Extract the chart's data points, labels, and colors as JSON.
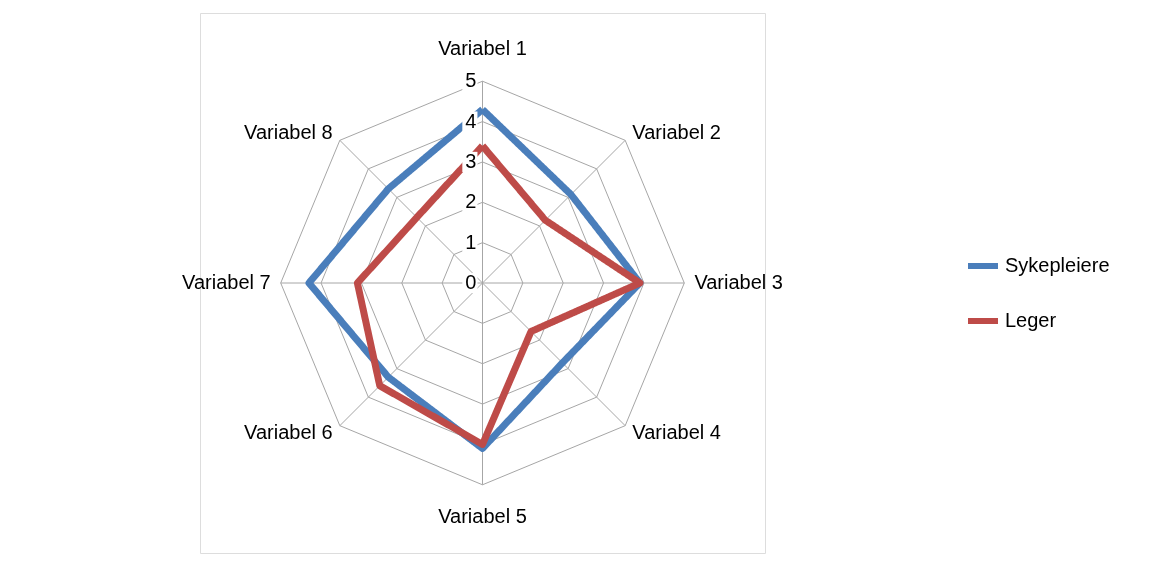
{
  "chart_data": {
    "type": "radar",
    "categories": [
      "Variabel 1",
      "Variabel 2",
      "Variabel 3",
      "Variabel 4",
      "Variabel 5",
      "Variabel 6",
      "Variabel 7",
      "Variabel 8"
    ],
    "series": [
      {
        "name": "Sykepleiere",
        "color": "#4a7ebb",
        "values": [
          4.3,
          3.1,
          3.9,
          2.8,
          4.1,
          3.3,
          4.3,
          3.3
        ]
      },
      {
        "name": "Leger",
        "color": "#be4b48",
        "values": [
          3.4,
          2.2,
          3.9,
          1.7,
          4.0,
          3.6,
          3.1,
          2.3
        ]
      }
    ],
    "ylim": [
      0,
      5
    ],
    "yticks": [
      0,
      1,
      2,
      3,
      4,
      5
    ],
    "grid": true,
    "legend": "right",
    "marker": "none",
    "line_style": "solid"
  }
}
